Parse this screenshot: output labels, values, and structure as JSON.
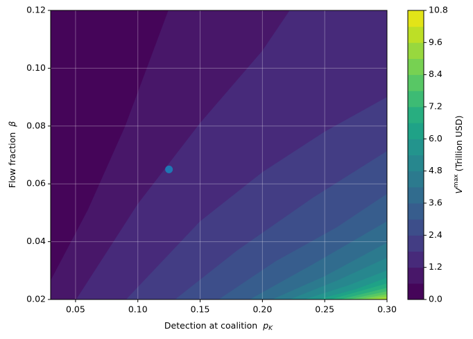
{
  "chart_data": {
    "type": "contour",
    "xlabel": {
      "text": "Detection at coalition",
      "symbol": "p",
      "subscript": "K"
    },
    "ylabel": {
      "text": "Flow fraction",
      "symbol": "β"
    },
    "colorbar_label": {
      "symbol": "V",
      "superscript": "max",
      "text": "(Trillion USD)"
    },
    "xlim": [
      0.03,
      0.3
    ],
    "ylim": [
      0.02,
      0.12
    ],
    "xticks": [
      0.05,
      {
        "value": 0.1,
        "label": "0.10"
      },
      0.15,
      {
        "value": 0.2,
        "label": "0.20"
      },
      0.25,
      {
        "value": 0.3,
        "label": "0.30"
      }
    ],
    "yticks": [
      0.02,
      0.04,
      0.06,
      0.08,
      {
        "value": 0.1,
        "label": "0.10"
      },
      0.12
    ],
    "grid": true,
    "levels": [
      0,
      0.6,
      1.2,
      1.8,
      2.4,
      3.0,
      3.6,
      4.2,
      4.8,
      5.4,
      6.0,
      6.6,
      7.2,
      7.8,
      8.4,
      9.0,
      9.6,
      10.2,
      10.8
    ],
    "colors": [
      "#450559",
      "#481769",
      "#472a7a",
      "#433d84",
      "#3d4e8a",
      "#375d8d",
      "#316c8e",
      "#2c7a8e",
      "#27878e",
      "#23948d",
      "#1fa287",
      "#28ae80",
      "#3dbb74",
      "#58c765",
      "#77d152",
      "#98d83e",
      "#bddf26",
      "#e2e418"
    ],
    "contours": [
      [
        [
          0.03,
          0.0265
        ],
        [
          0.06,
          0.051
        ],
        [
          0.09,
          0.08
        ],
        [
          0.1246,
          0.12
        ]
      ],
      [
        [
          0.0506,
          0.02
        ],
        [
          0.1,
          0.053
        ],
        [
          0.15,
          0.081
        ],
        [
          0.2,
          0.106
        ],
        [
          0.222,
          0.12
        ]
      ],
      [
        [
          0.0907,
          0.02
        ],
        [
          0.15,
          0.047
        ],
        [
          0.2,
          0.064
        ],
        [
          0.25,
          0.078
        ],
        [
          0.3,
          0.09
        ]
      ],
      [
        [
          0.13,
          0.02
        ],
        [
          0.18,
          0.037
        ],
        [
          0.24,
          0.055
        ],
        [
          0.3,
          0.0713
        ]
      ],
      [
        [
          0.165,
          0.02
        ],
        [
          0.21,
          0.033
        ],
        [
          0.26,
          0.045
        ],
        [
          0.3,
          0.0565
        ]
      ],
      [
        [
          0.19,
          0.02
        ],
        [
          0.24,
          0.032
        ],
        [
          0.3,
          0.047
        ]
      ],
      [
        [
          0.208,
          0.02
        ],
        [
          0.25,
          0.028
        ],
        [
          0.3,
          0.0396
        ]
      ],
      [
        [
          0.222,
          0.02
        ],
        [
          0.26,
          0.0265
        ],
        [
          0.3,
          0.0344
        ]
      ],
      [
        [
          0.234,
          0.02
        ],
        [
          0.27,
          0.025
        ],
        [
          0.3,
          0.03
        ]
      ],
      [
        [
          0.245,
          0.02
        ],
        [
          0.275,
          0.0235
        ],
        [
          0.3,
          0.0275
        ]
      ],
      [
        [
          0.255,
          0.02
        ],
        [
          0.3,
          0.0255
        ]
      ],
      [
        [
          0.263,
          0.02
        ],
        [
          0.3,
          0.024
        ]
      ],
      [
        [
          0.27,
          0.02
        ],
        [
          0.3,
          0.0228
        ]
      ],
      [
        [
          0.277,
          0.02
        ],
        [
          0.3,
          0.0218
        ]
      ],
      [
        [
          0.283,
          0.02
        ],
        [
          0.3,
          0.021
        ]
      ],
      [
        [
          0.289,
          0.02
        ],
        [
          0.3,
          0.0203
        ]
      ]
    ],
    "colorbar_ticks": [
      {
        "value": 0,
        "label": "0.0"
      },
      1.2,
      2.4,
      3.6,
      4.8,
      {
        "value": 6,
        "label": "6.0"
      },
      7.2,
      8.4,
      9.6,
      10.8
    ],
    "point": {
      "x": 0.125,
      "y": 0.065,
      "color": "#1f77b4"
    }
  }
}
